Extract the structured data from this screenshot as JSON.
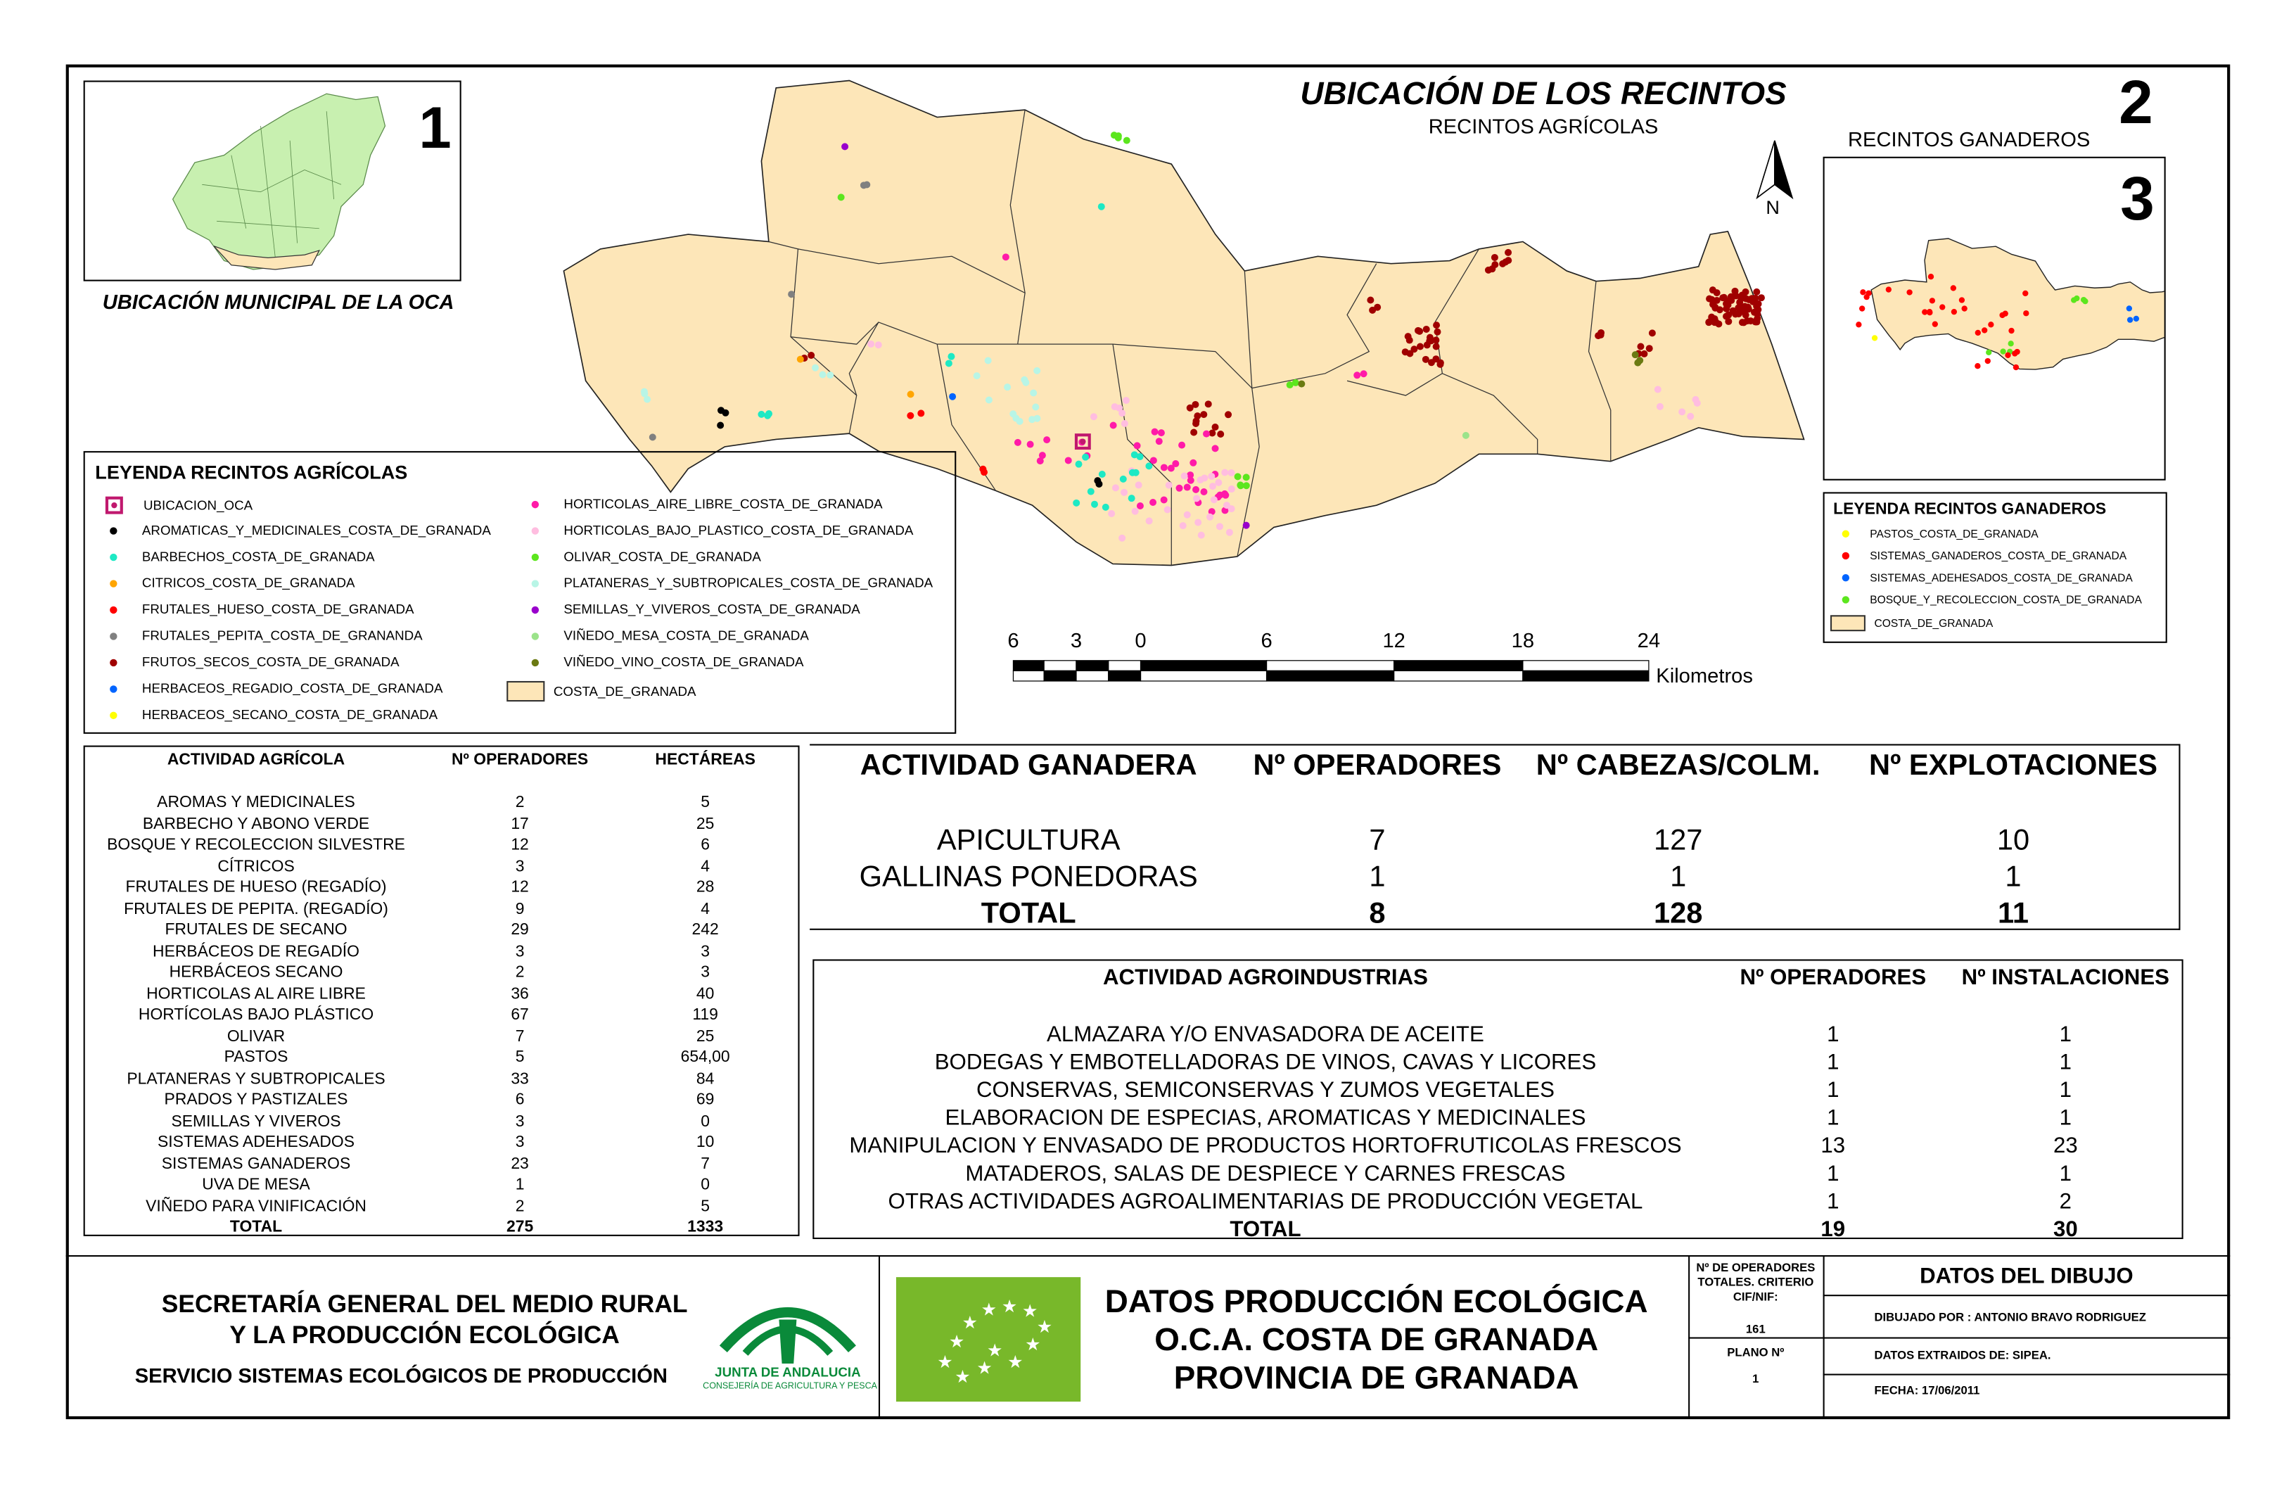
{
  "map": {
    "title": "UBICACIÓN DE LOS RECINTOS",
    "subtitle": "RECINTOS AGRÍCOLAS",
    "number_2": "2",
    "north_label": "N",
    "fill_color": "#fde6b8",
    "scale": {
      "ticks": [
        "6",
        "3",
        "0",
        "6",
        "12",
        "18",
        "24"
      ],
      "unit": "Kilometros"
    }
  },
  "inset1": {
    "number": "1",
    "caption": "UBICACIÓN MUNICIPAL DE LA OCA"
  },
  "inset3": {
    "heading": "RECINTOS GANADEROS",
    "number": "3"
  },
  "legend_agricola": {
    "title": "LEYENDA RECINTOS AGRÍCOLAS",
    "items": [
      {
        "label": "UBICACION_OCA",
        "color": "#c0186e",
        "symbol": "square"
      },
      {
        "label": "AROMATICAS_Y_MEDICINALES_COSTA_DE_GRANADA",
        "color": "#000000"
      },
      {
        "label": "BARBECHOS_COSTA_DE_GRANADA",
        "color": "#1de9c4"
      },
      {
        "label": "CITRICOS_COSTA_DE_GRANADA",
        "color": "#ffa500"
      },
      {
        "label": "FRUTALES_HUESO_COSTA_DE_GRANADA",
        "color": "#ff0000"
      },
      {
        "label": "FRUTALES_PEPITA_COSTA_DE_GRANANDA",
        "color": "#808080"
      },
      {
        "label": "FRUTOS_SECOS_COSTA_DE_GRANADA",
        "color": "#a00000"
      },
      {
        "label": "HERBACEOS_REGADIO_COSTA_DE_GRANADA",
        "color": "#0064ff"
      },
      {
        "label": "HERBACEOS_SECANO_COSTA_DE_GRANADA",
        "color": "#ffff00"
      },
      {
        "label": "HORTICOLAS_AIRE_LIBRE_COSTA_DE_GRANADA",
        "color": "#ff1aa8"
      },
      {
        "label": "HORTICOLAS_BAJO_PLASTICO_COSTA_DE_GRANADA",
        "color": "#ffbde0"
      },
      {
        "label": "OLIVAR_COSTA_DE_GRANADA",
        "color": "#5ce61e"
      },
      {
        "label": "PLATANERAS_Y_SUBTROPICALES_COSTA_DE_GRANADA",
        "color": "#b8f5e6"
      },
      {
        "label": "SEMILLAS_Y_VIVEROS_COSTA_DE_GRANADA",
        "color": "#9900cc"
      },
      {
        "label": "VIÑEDO_MESA_COSTA_DE_GRANADA",
        "color": "#9be38a"
      },
      {
        "label": "VIÑEDO_VINO_COSTA_DE_GRANADA",
        "color": "#6b7a12"
      },
      {
        "label": "COSTA_DE_GRANADA",
        "color": "#fde6b8",
        "symbol": "area"
      }
    ]
  },
  "legend_ganadero": {
    "title": "LEYENDA RECINTOS GANADEROS",
    "items": [
      {
        "label": "PASTOS_COSTA_DE_GRANADA",
        "color": "#ffff00"
      },
      {
        "label": "SISTEMAS_GANADEROS_COSTA_DE_GRANADA",
        "color": "#ff0000"
      },
      {
        "label": "SISTEMAS_ADEHESADOS_COSTA_DE_GRANADA",
        "color": "#0064ff"
      },
      {
        "label": "BOSQUE_Y_RECOLECCION_COSTA_DE_GRANADA",
        "color": "#5ce61e"
      },
      {
        "label": "COSTA_DE_GRANADA",
        "color": "#fde6b8",
        "symbol": "area"
      }
    ]
  },
  "tabla_agricola": {
    "headers": [
      "ACTIVIDAD AGRÍCOLA",
      "Nº OPERADORES",
      "HECTÁREAS"
    ],
    "rows": [
      [
        "AROMAS Y MEDICINALES",
        "2",
        "5"
      ],
      [
        "BARBECHO Y ABONO VERDE",
        "17",
        "25"
      ],
      [
        "BOSQUE Y RECOLECCION SILVESTRE",
        "12",
        "6"
      ],
      [
        "CÍTRICOS",
        "3",
        "4"
      ],
      [
        "FRUTALES DE HUESO (REGADÍO)",
        "12",
        "28"
      ],
      [
        "FRUTALES DE PEPITA. (REGADÍO)",
        "9",
        "4"
      ],
      [
        "FRUTALES DE SECANO",
        "29",
        "242"
      ],
      [
        "HERBÁCEOS DE REGADÍO",
        "3",
        "3"
      ],
      [
        "HERBÁCEOS SECANO",
        "2",
        "3"
      ],
      [
        "HORTICOLAS AL AIRE LIBRE",
        "36",
        "40"
      ],
      [
        "HORTÍCOLAS BAJO PLÁSTICO",
        "67",
        "119"
      ],
      [
        "OLIVAR",
        "7",
        "25"
      ],
      [
        "PASTOS",
        "5",
        "654,00"
      ],
      [
        "PLATANERAS Y SUBTROPICALES",
        "33",
        "84"
      ],
      [
        "PRADOS Y PASTIZALES",
        "6",
        "69"
      ],
      [
        "SEMILLAS Y VIVEROS",
        "3",
        "0"
      ],
      [
        "SISTEMAS ADEHESADOS",
        "3",
        "10"
      ],
      [
        "SISTEMAS GANADEROS",
        "23",
        "7"
      ],
      [
        "UVA DE MESA",
        "1",
        "0"
      ],
      [
        "VIÑEDO PARA VINIFICACIÓN",
        "2",
        "5"
      ]
    ],
    "total": [
      "TOTAL",
      "275",
      "1333"
    ]
  },
  "tabla_ganadera": {
    "headers": [
      "ACTIVIDAD GANADERA",
      "Nº OPERADORES",
      "Nº CABEZAS/COLM.",
      "Nº EXPLOTACIONES"
    ],
    "rows": [
      [
        "APICULTURA",
        "7",
        "127",
        "10"
      ],
      [
        "GALLINAS PONEDORAS",
        "1",
        "1",
        "1"
      ]
    ],
    "total": [
      "TOTAL",
      "8",
      "128",
      "11"
    ]
  },
  "tabla_agroindustrias": {
    "headers": [
      "ACTIVIDAD AGROINDUSTRIAS",
      "Nº OPERADORES",
      "Nº INSTALACIONES"
    ],
    "rows": [
      [
        "ALMAZARA Y/O ENVASADORA DE ACEITE",
        "1",
        "1"
      ],
      [
        "BODEGAS Y EMBOTELLADORAS DE VINOS, CAVAS Y LICORES",
        "1",
        "1"
      ],
      [
        "CONSERVAS, SEMICONSERVAS Y ZUMOS VEGETALES",
        "1",
        "1"
      ],
      [
        "ELABORACION DE ESPECIAS, AROMATICAS Y MEDICINALES",
        "1",
        "1"
      ],
      [
        "MANIPULACION Y ENVASADO DE PRODUCTOS HORTOFRUTICOLAS FRESCOS",
        "13",
        "23"
      ],
      [
        "MATADEROS, SALAS DE DESPIECE Y CARNES FRESCAS",
        "1",
        "1"
      ],
      [
        "OTRAS ACTIVIDADES AGROALIMENTARIAS DE PRODUCCIÓN VEGETAL",
        "1",
        "2"
      ]
    ],
    "total": [
      "TOTAL",
      "19",
      "30"
    ]
  },
  "footer": {
    "org_line1": "SECRETARÍA GENERAL DEL MEDIO RURAL",
    "org_line2": "Y LA PRODUCCIÓN ECOLÓGICA",
    "org_line3": "SERVICIO SISTEMAS ECOLÓGICOS DE PRODUCCIÓN",
    "junta_name": "JUNTA DE ANDALUCIA",
    "junta_dept": "CONSEJERÍA DE AGRICULTURA Y PESCA",
    "main_line1": "DATOS PRODUCCIÓN ECOLÓGICA",
    "main_line2": "O.C.A. COSTA DE GRANADA",
    "main_line3": "PROVINCIA DE GRANADA",
    "operadores_label": "Nº DE OPERADORES TOTALES. CRITERIO CIF/NIF:",
    "operadores_value": "161",
    "plano_label": "PLANO Nº",
    "plano_value": "1",
    "datos_title": "DATOS DEL DIBUJO",
    "dibujado": "DIBUJADO POR : ANTONIO BRAVO RODRIGUEZ",
    "extraidos": "DATOS EXTRAIDOS DE: SIPEA.",
    "fecha": "FECHA: 17/06/2011",
    "eu_color": "#78b82a"
  }
}
